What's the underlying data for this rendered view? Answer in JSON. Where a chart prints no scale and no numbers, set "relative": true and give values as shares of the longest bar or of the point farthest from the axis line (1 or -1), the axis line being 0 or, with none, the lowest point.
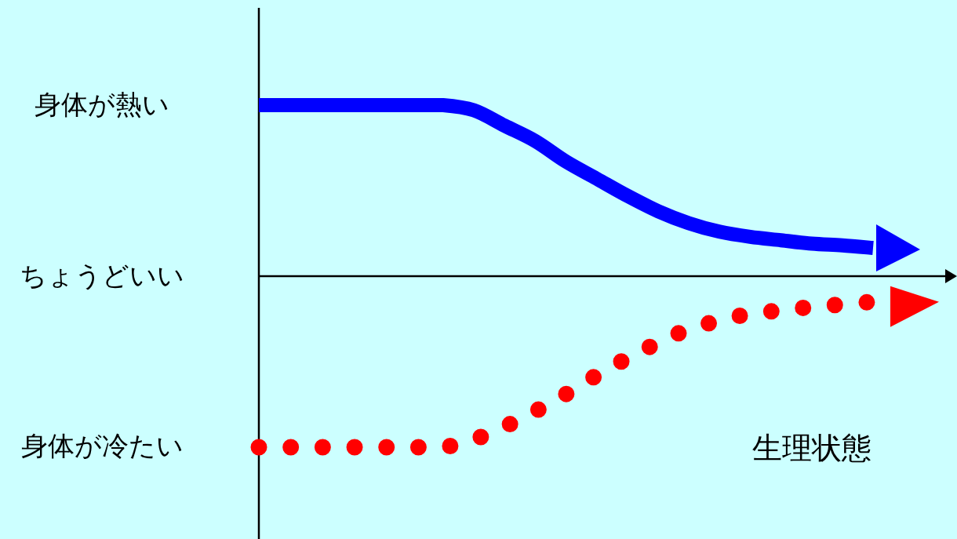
{
  "chart_data": {
    "type": "line",
    "relative": true,
    "xlabel": "生理状態",
    "categories": [
      null,
      null,
      null,
      null,
      null,
      null,
      null,
      null,
      null,
      null,
      null,
      null,
      null,
      null,
      null,
      null,
      null,
      null,
      null,
      null,
      null
    ],
    "series": [
      {
        "color": "#0000ff",
        "line_style": "solid",
        "values": [
          1,
          1,
          1,
          1,
          1,
          1,
          1,
          0.97,
          0.88,
          0.79,
          0.67,
          0.57,
          0.47,
          0.38,
          0.31,
          0.26,
          0.23,
          0.21,
          0.19,
          0.18,
          0.165
        ]
      },
      {
        "color": "#ff0000",
        "line_style": "dotted",
        "values": [
          -1,
          -1,
          -1,
          -1,
          -1,
          -1,
          -1,
          -0.955,
          -0.88,
          -0.79,
          -0.69,
          -0.58,
          -0.48,
          -0.39,
          -0.31,
          -0.26,
          -0.22,
          -0.2,
          -0.18,
          -0.165,
          -0.15
        ]
      }
    ],
    "annotations": [
      "身体が熱い",
      "ちょうどいい",
      "身体が冷たい"
    ],
    "marker": "none"
  }
}
